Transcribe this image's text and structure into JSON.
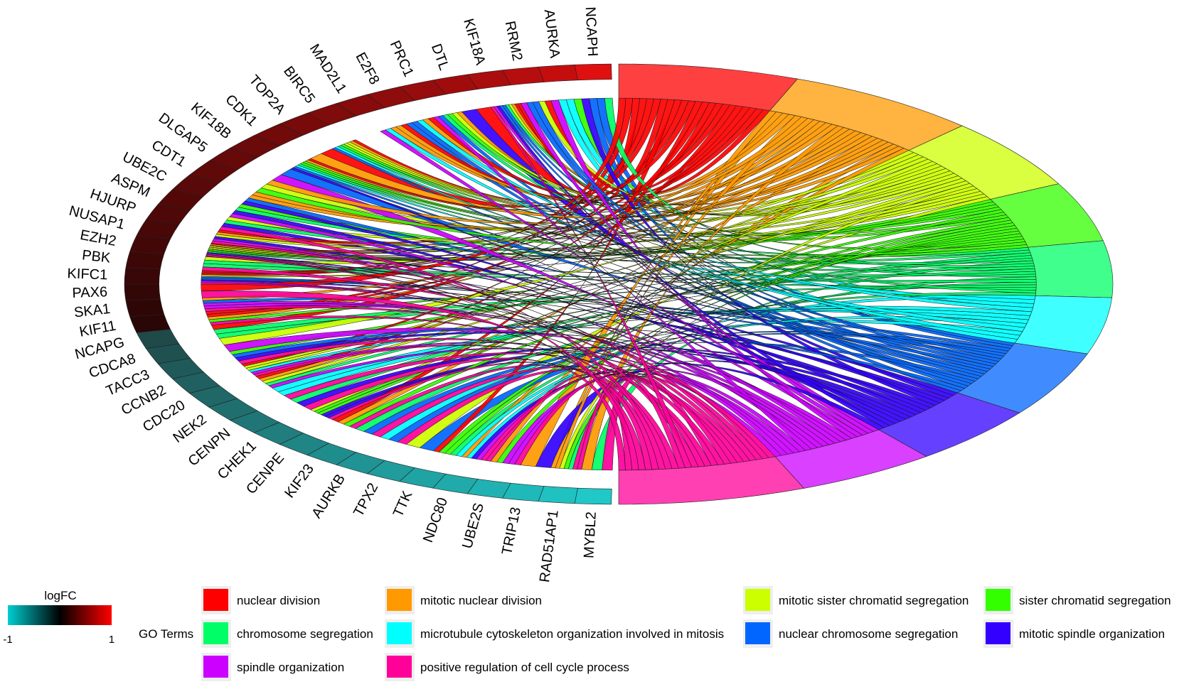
{
  "chart_data": {
    "type": "chord",
    "title": "",
    "genes_upper": [
      "NCAPH",
      "AURKA",
      "RRM2",
      "KIF18A",
      "DTL",
      "PRC1",
      "E2F8",
      "MAD2L1",
      "BIRC5",
      "TOP2A",
      "CDK1",
      "KIF18B",
      "DLGAP5",
      "CDT1",
      "UBE2C",
      "ASPM",
      "HJURP",
      "NUSAP1",
      "EZH2",
      "PBK",
      "KIFC1",
      "PAX6",
      "SKA1",
      "KIF11"
    ],
    "genes_lower": [
      "NCAPG",
      "CDCA8",
      "TACC3",
      "CCNB2",
      "CDC20",
      "NEK2",
      "CENPN",
      "CHEK1",
      "CENPE",
      "KIF23",
      "AURKB",
      "TPX2",
      "TTK",
      "NDC80",
      "UBE2S",
      "TRIP13",
      "RAD51AP1",
      "MYBL2"
    ],
    "terms": [
      {
        "name": "nuclear division",
        "color": "#FF0000"
      },
      {
        "name": "mitotic nuclear division",
        "color": "#FF9900"
      },
      {
        "name": "mitotic sister chromatid segregation",
        "color": "#CCFF00"
      },
      {
        "name": "sister chromatid segregation",
        "color": "#33FF00"
      },
      {
        "name": "chromosome segregation",
        "color": "#00FF66"
      },
      {
        "name": "microtubule cytoskeleton organization involved in mitosis",
        "color": "#00FFFF"
      },
      {
        "name": "nuclear chromosome segregation",
        "color": "#0066FF"
      },
      {
        "name": "mitotic spindle organization",
        "color": "#3300FF"
      },
      {
        "name": "spindle organization",
        "color": "#CC00FF"
      },
      {
        "name": "positive regulation of cell cycle process",
        "color": "#FF0099"
      }
    ],
    "legend": {
      "logfc_title": "logFC",
      "logfc_min": "-1",
      "logfc_max": "1",
      "go_title": "GO Terms",
      "gradient_colors": [
        "#00CED1",
        "#000000",
        "#FF0000"
      ]
    }
  }
}
